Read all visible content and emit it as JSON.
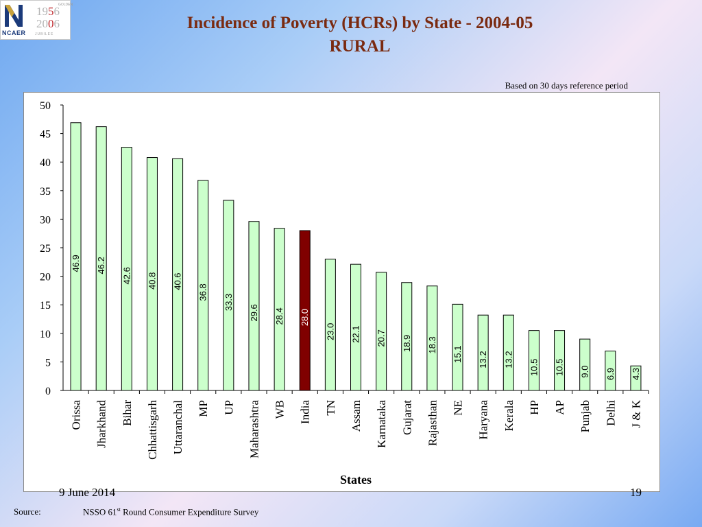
{
  "logo": {
    "org": "NCAER",
    "golden": "GOLDEN",
    "year_start_a": "19",
    "year_start_b": "5",
    "year_start_c": "6",
    "year_end_a": "20",
    "year_end_b": "0",
    "year_end_c": "6",
    "jubilee": "JUBILEE",
    "colors": {
      "navy": "#1b3a7a",
      "gold": "#c8a23c",
      "red": "#c0282d"
    }
  },
  "slide": {
    "title_line1": "Incidence of Poverty (HCRs) by State - 2004-05",
    "title_line2": "RURAL",
    "note": "Based on 30 days reference period",
    "date": "9 June 2014",
    "page": "19",
    "source_label": "Source:",
    "source_pre": "NSSO 61",
    "source_sup": "st",
    "source_post": " Round Consumer Expenditure Survey"
  },
  "chart_data": {
    "type": "bar",
    "xlabel": "States",
    "ylabel": "",
    "ylim": [
      0,
      50
    ],
    "yticks": [
      0,
      5,
      10,
      15,
      20,
      25,
      30,
      35,
      40,
      45,
      50
    ],
    "grid": false,
    "categories": [
      "Orissa",
      "Jharkhand",
      "Bihar",
      "Chhattisgarh",
      "Uttaranchal",
      "MP",
      "UP",
      "Maharashtra",
      "WB",
      "India",
      "TN",
      "Assam",
      "Karnataka",
      "Gujarat",
      "Rajasthan",
      "NE",
      "Haryana",
      "Kerala",
      "HP",
      "AP",
      "Punjab",
      "Delhi",
      "J & K"
    ],
    "values": [
      46.9,
      46.2,
      42.6,
      40.8,
      40.6,
      36.8,
      33.3,
      29.6,
      28.4,
      28.0,
      23.0,
      22.1,
      20.7,
      18.9,
      18.3,
      15.1,
      13.2,
      13.2,
      10.5,
      10.5,
      9.0,
      6.9,
      4.3
    ],
    "value_labels": [
      "46.9",
      "46.2",
      "42.6",
      "40.8",
      "40.6",
      "36.8",
      "33.3",
      "29.6",
      "28.4",
      "28.0",
      "23.0",
      "22.1",
      "20.7",
      "18.9",
      "18.3",
      "15.1",
      "13.2",
      "13.2",
      "10.5",
      "10.5",
      "9.0",
      "6.9",
      "4.3"
    ],
    "highlight": "India",
    "colors": {
      "bar": "#ccffcc",
      "highlight": "#800000",
      "outline": "#000000",
      "label": "#000000",
      "highlight_label": "#ffffff"
    }
  }
}
